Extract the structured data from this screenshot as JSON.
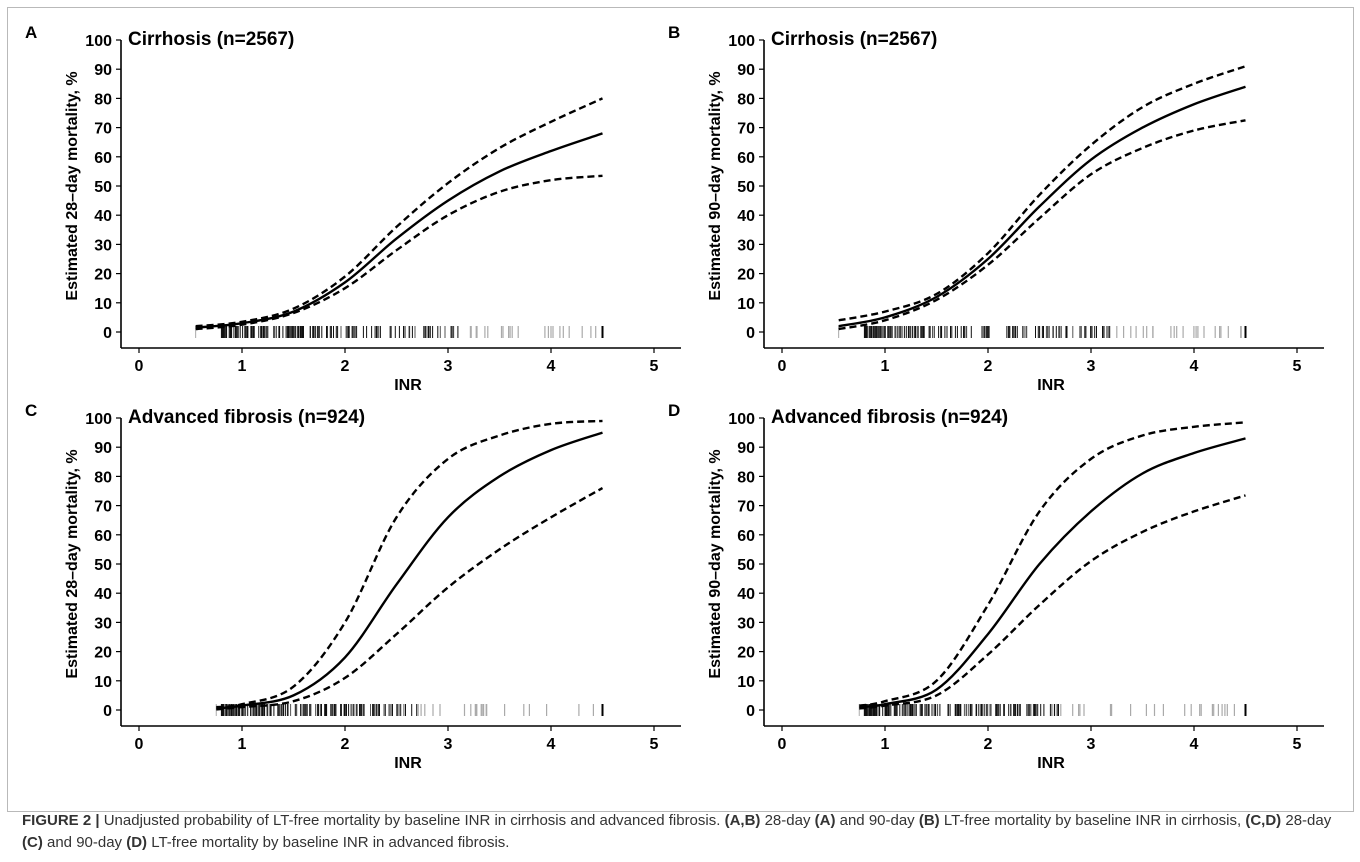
{
  "figure_title": "FIGURE 2 |",
  "caption": {
    "t1": "Unadjusted probability of LT-free mortality by baseline INR in cirrhosis and advanced fibrosis.",
    "t2": "(A,B)",
    "t3": "28-day",
    "t4": "(A)",
    "t5": "and 90-day",
    "t6": "(B)",
    "t7": "LT-free mortality by baseline INR in cirrhosis,",
    "t8": "(C,D)",
    "t9": "28-day",
    "t10": "(C)",
    "t11": "and 90-day",
    "t12": "(D)",
    "t13": "LT-free mortality by baseline INR in advanced fibrosis."
  },
  "colors": {
    "line": "#000000",
    "rug_dark": "#111111",
    "rug_light": "#aaaaaa"
  },
  "chart_data": [
    {
      "panel": "A",
      "type": "line",
      "title": "Cirrhosis (n=2567)",
      "xlabel": "INR",
      "ylabel": "Estimated 28–day mortality, %",
      "xlim": [
        0,
        5
      ],
      "ylim": [
        0,
        100
      ],
      "xticks": [
        0,
        1,
        2,
        3,
        4,
        5
      ],
      "yticks": [
        0,
        10,
        20,
        30,
        40,
        50,
        60,
        70,
        80,
        90,
        100
      ],
      "x": [
        0.55,
        1.0,
        1.5,
        2.0,
        2.5,
        3.0,
        3.5,
        4.0,
        4.5
      ],
      "series": [
        {
          "role": "estimate",
          "style": "solid",
          "y": [
            1.5,
            3,
            7,
            17,
            32,
            45,
            55,
            62,
            68
          ]
        },
        {
          "role": "upper 95% CI",
          "style": "dashed",
          "y": [
            2,
            3.5,
            8,
            19,
            36,
            51,
            63,
            72,
            80
          ]
        },
        {
          "role": "lower 95% CI",
          "style": "dashed",
          "y": [
            1,
            2.5,
            6.5,
            15,
            28,
            40,
            48,
            52,
            53.5
          ]
        }
      ],
      "rug": {
        "dense_range": [
          0.8,
          3.2
        ],
        "sparse_range": [
          3.2,
          4.5
        ],
        "outliers": [
          0.55
        ]
      }
    },
    {
      "panel": "B",
      "type": "line",
      "title": "Cirrhosis (n=2567)",
      "xlabel": "INR",
      "ylabel": "Estimated 90–day mortality, %",
      "xlim": [
        0,
        5
      ],
      "ylim": [
        0,
        100
      ],
      "xticks": [
        0,
        1,
        2,
        3,
        4,
        5
      ],
      "yticks": [
        0,
        10,
        20,
        30,
        40,
        50,
        60,
        70,
        80,
        90,
        100
      ],
      "x": [
        0.55,
        1.0,
        1.5,
        2.0,
        2.5,
        3.0,
        3.5,
        4.0,
        4.5
      ],
      "series": [
        {
          "role": "estimate",
          "style": "solid",
          "y": [
            2,
            5,
            12,
            25,
            43,
            59,
            70,
            78,
            84
          ]
        },
        {
          "role": "upper 95% CI",
          "style": "dashed",
          "y": [
            4,
            7,
            13,
            27,
            47,
            64,
            77,
            85,
            91
          ]
        },
        {
          "role": "lower 95% CI",
          "style": "dashed",
          "y": [
            1,
            4,
            11,
            23,
            39,
            54,
            63,
            69,
            72.5
          ]
        }
      ],
      "rug": {
        "dense_range": [
          0.8,
          3.2
        ],
        "sparse_range": [
          3.2,
          4.5
        ],
        "outliers": [
          0.55
        ]
      }
    },
    {
      "panel": "C",
      "type": "line",
      "title": "Advanced fibrosis (n=924)",
      "xlabel": "INR",
      "ylabel": "Estimated 28–day mortality, %",
      "xlim": [
        0,
        5
      ],
      "ylim": [
        0,
        100
      ],
      "xticks": [
        0,
        1,
        2,
        3,
        4,
        5
      ],
      "yticks": [
        0,
        10,
        20,
        30,
        40,
        50,
        60,
        70,
        80,
        90,
        100
      ],
      "x": [
        0.75,
        1.0,
        1.5,
        2.0,
        2.5,
        3.0,
        3.5,
        4.0,
        4.5
      ],
      "series": [
        {
          "role": "estimate",
          "style": "solid",
          "y": [
            0.5,
            1.5,
            5,
            18,
            43,
            66,
            80,
            89,
            95
          ]
        },
        {
          "role": "upper 95% CI",
          "style": "dashed",
          "y": [
            1,
            2,
            8,
            30,
            66,
            86,
            94,
            98,
            99
          ]
        },
        {
          "role": "lower 95% CI",
          "style": "dashed",
          "y": [
            0.2,
            1,
            3,
            11,
            26,
            42,
            55,
            66,
            76
          ]
        }
      ],
      "rug": {
        "dense_range": [
          0.8,
          2.7
        ],
        "sparse_range": [
          2.7,
          4.5
        ],
        "outliers": [
          0.75
        ]
      }
    },
    {
      "panel": "D",
      "type": "line",
      "title": "Advanced fibrosis (n=924)",
      "xlabel": "INR",
      "ylabel": "Estimated 90–day mortality, %",
      "xlim": [
        0,
        5
      ],
      "ylim": [
        0,
        100
      ],
      "xticks": [
        0,
        1,
        2,
        3,
        4,
        5
      ],
      "yticks": [
        0,
        10,
        20,
        30,
        40,
        50,
        60,
        70,
        80,
        90,
        100
      ],
      "x": [
        0.75,
        1.0,
        1.5,
        2.0,
        2.5,
        3.0,
        3.5,
        4.0,
        4.5
      ],
      "series": [
        {
          "role": "estimate",
          "style": "solid",
          "y": [
            1,
            2,
            7,
            26,
            50,
            68,
            81,
            88,
            93
          ]
        },
        {
          "role": "upper 95% CI",
          "style": "dashed",
          "y": [
            1.5,
            3,
            10,
            36,
            68,
            86,
            94,
            97,
            98.5
          ]
        },
        {
          "role": "lower 95% CI",
          "style": "dashed",
          "y": [
            0.5,
            1.5,
            5,
            19,
            36,
            51,
            61,
            68,
            73.5
          ]
        }
      ],
      "rug": {
        "dense_range": [
          0.8,
          2.7
        ],
        "sparse_range": [
          2.7,
          4.5
        ],
        "outliers": [
          0.75
        ]
      }
    }
  ]
}
